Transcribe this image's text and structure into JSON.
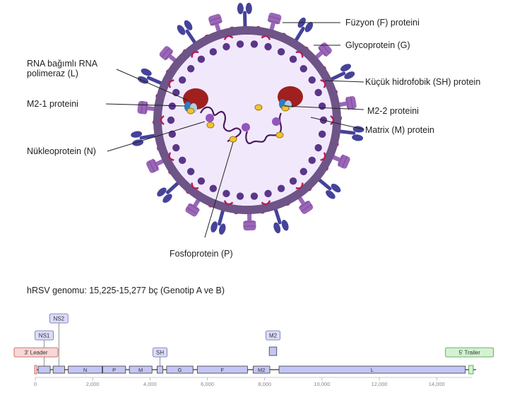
{
  "labels": {
    "fusion": "Füzyon (F) proteini",
    "glyco": "Glycoprotein (G)",
    "sh": "Küçük hidrofobik (SH) protein",
    "m22": "M2-2 proteini",
    "matrix": "Matrix (M) protein",
    "rna_pol": "RNA bağımlı RNA polimeraz (L)",
    "m21": "M2-1 proteini",
    "nucleo": "Nükleoprotein (N)",
    "phospho": "Fosfoprotein (P)"
  },
  "genome": {
    "title": "hRSV genomu: 15,225-15,277 bç (Genotip A ve B)",
    "axis_min": 0,
    "axis_max": 15225,
    "ticks": [
      "0",
      "2,000",
      "4,000",
      "6,000",
      "8,000",
      "10,000",
      "12,000",
      "14,000"
    ],
    "tick_values": [
      0,
      2000,
      4000,
      6000,
      8000,
      10000,
      12000,
      14000
    ],
    "genes": [
      {
        "name": "NS1",
        "start": 100,
        "end": 520,
        "label": "NS1",
        "inside": false,
        "callout_level": 2
      },
      {
        "name": "NS2",
        "start": 620,
        "end": 1020,
        "label": "NS2",
        "inside": false,
        "callout_level": 3
      },
      {
        "name": "N",
        "start": 1150,
        "end": 2330,
        "label": "N",
        "inside": true
      },
      {
        "name": "P",
        "start": 2350,
        "end": 3150,
        "label": "P",
        "inside": true
      },
      {
        "name": "M",
        "start": 3280,
        "end": 4070,
        "label": "M",
        "inside": true
      },
      {
        "name": "SH",
        "start": 4250,
        "end": 4450,
        "label": "SH",
        "inside": false,
        "callout_level": 1
      },
      {
        "name": "G",
        "start": 4580,
        "end": 5500,
        "label": "G",
        "inside": true
      },
      {
        "name": "F",
        "start": 5650,
        "end": 7400,
        "label": "F",
        "inside": true
      },
      {
        "name": "M2",
        "start": 7600,
        "end": 8180,
        "label": "M2",
        "inside": true
      },
      {
        "name": "L",
        "start": 8500,
        "end": 15000,
        "label": "L",
        "inside": true
      }
    ],
    "m2_overlap": {
      "label": "M2",
      "start": 8160,
      "end": 8420,
      "callout_level": 2
    },
    "leader": {
      "label": "3' Leader",
      "start": 0,
      "end": 44
    },
    "trailer": {
      "label": "5' Trailer",
      "start": 15070,
      "end": 15225
    }
  },
  "colors": {
    "gene_fill": "#c3c6f5",
    "gene_stroke": "#3a3a3a",
    "leader_fill": "#f8d7d7",
    "leader_stroke": "#c0504d",
    "trailer_fill": "#d4f2d2",
    "trailer_stroke": "#3c9a3c",
    "membrane": "#6e5487",
    "interior": "#f1e9fb",
    "dots": "#5a3688",
    "f_protein": "#45439a",
    "g_protein": "#9a66b8",
    "matrix": "#b21f58",
    "polymerase": "#a01f1f"
  }
}
